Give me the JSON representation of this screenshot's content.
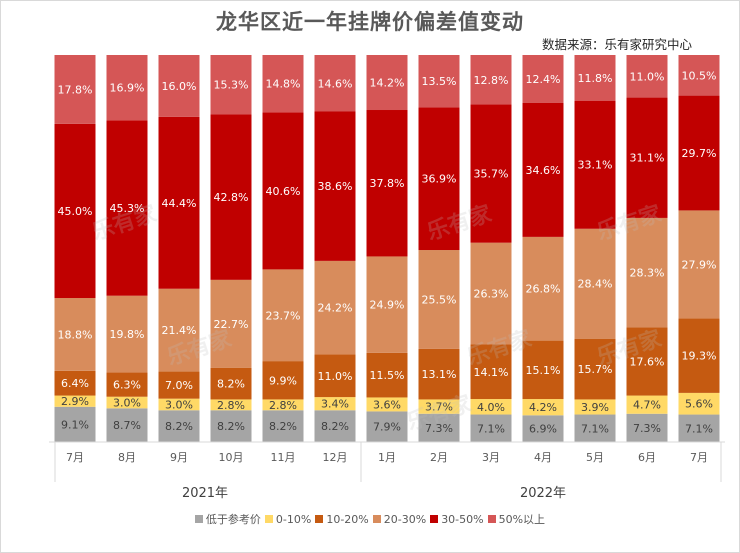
{
  "header": {
    "title": "龙华区近一年挂牌价偏差值变动",
    "source": "数据来源：乐有家研究中心"
  },
  "watermark_text": "乐有家",
  "chart_data": {
    "type": "bar",
    "stacked": true,
    "normalized": true,
    "title": "龙华区近一年挂牌价偏差值变动",
    "xlabel": "",
    "ylabel": "",
    "ylim": [
      0,
      100
    ],
    "grid": false,
    "legend_position": "bottom",
    "categories": [
      "7月",
      "8月",
      "9月",
      "10月",
      "11月",
      "12月",
      "1月",
      "2月",
      "3月",
      "4月",
      "5月",
      "6月",
      "7月"
    ],
    "category_groups": [
      {
        "label": "2021年",
        "count": 6
      },
      {
        "label": "2022年",
        "count": 7
      }
    ],
    "series": [
      {
        "name": "低于参考价",
        "color": "#a5a5a5",
        "label_color": "#404040",
        "values": [
          9.1,
          8.7,
          8.2,
          8.2,
          8.2,
          8.2,
          7.9,
          7.3,
          7.1,
          6.9,
          7.1,
          7.3,
          7.1
        ]
      },
      {
        "name": "0-10%",
        "color": "#ffd966",
        "label_color": "#404040",
        "values": [
          2.9,
          3.0,
          3.0,
          2.8,
          2.8,
          3.4,
          3.6,
          3.7,
          4.0,
          4.2,
          3.9,
          4.7,
          5.6
        ]
      },
      {
        "name": "10-20%",
        "color": "#c55a11",
        "label_color": "#ffffff",
        "values": [
          6.4,
          6.3,
          7.0,
          8.2,
          9.9,
          11.0,
          11.5,
          13.1,
          14.1,
          15.1,
          15.7,
          17.6,
          19.3
        ]
      },
      {
        "name": "20-30%",
        "color": "#d88c5c",
        "label_color": "#ffffff",
        "values": [
          18.8,
          19.8,
          21.4,
          22.7,
          23.7,
          24.2,
          24.9,
          25.5,
          26.3,
          26.8,
          28.4,
          28.3,
          27.9
        ]
      },
      {
        "name": "30-50%",
        "color": "#c00000",
        "label_color": "#ffffff",
        "values": [
          45.0,
          45.3,
          44.4,
          42.8,
          40.6,
          38.6,
          37.8,
          36.9,
          35.7,
          34.6,
          33.1,
          31.1,
          29.7
        ]
      },
      {
        "name": "50%以上",
        "color": "#d55656",
        "label_color": "#ffffff",
        "values": [
          17.8,
          16.9,
          16.0,
          15.3,
          14.8,
          14.6,
          14.2,
          13.5,
          12.8,
          12.4,
          11.8,
          11.0,
          10.5
        ]
      }
    ],
    "value_format": "{v}%"
  }
}
